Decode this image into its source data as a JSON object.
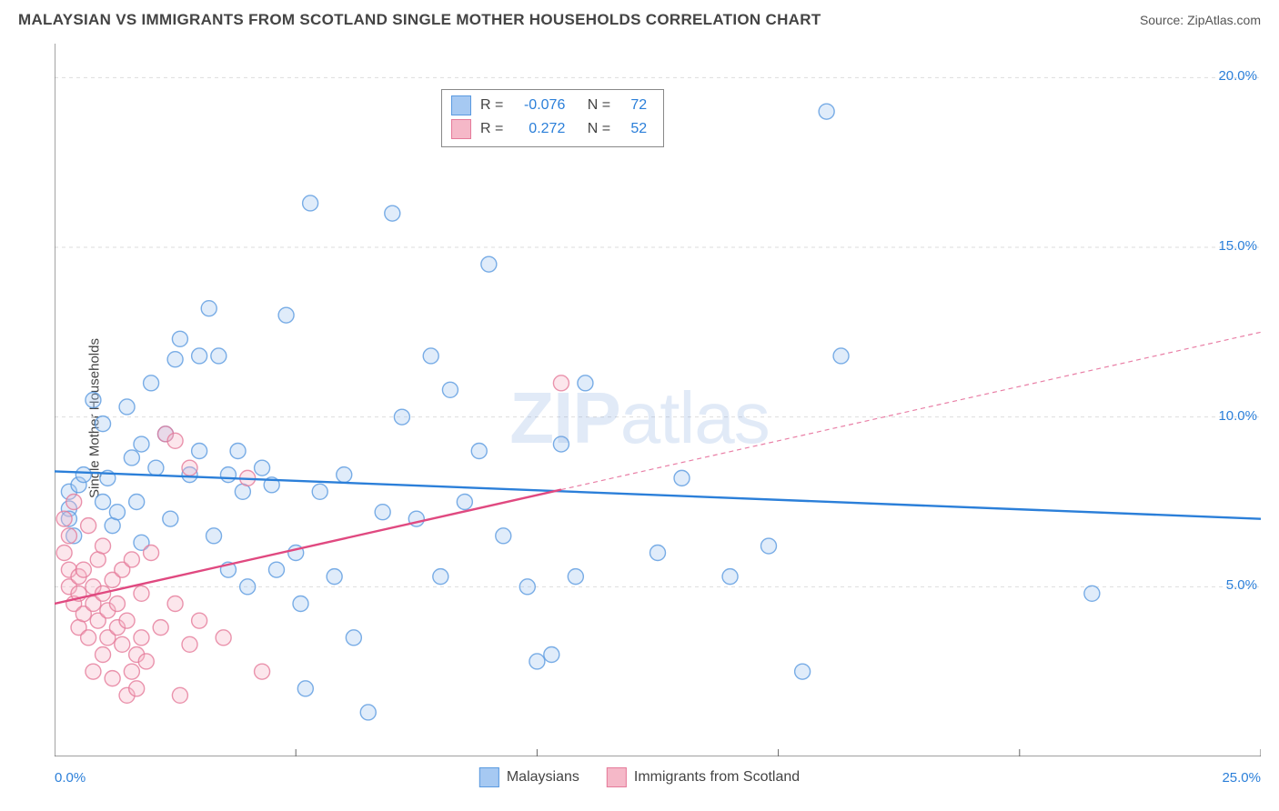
{
  "title": "MALAYSIAN VS IMMIGRANTS FROM SCOTLAND SINGLE MOTHER HOUSEHOLDS CORRELATION CHART",
  "source_label": "Source: ",
  "source_value": "ZipAtlas.com",
  "y_axis_label": "Single Mother Households",
  "watermark_bold": "ZIP",
  "watermark_rest": "atlas",
  "chart": {
    "type": "scatter",
    "background_color": "#ffffff",
    "grid_color": "#dddddd",
    "axis_color": "#666666",
    "xlim": [
      0,
      25
    ],
    "ylim": [
      0,
      21
    ],
    "x_ticks": [
      0,
      5,
      10,
      15,
      20,
      25
    ],
    "x_tick_labels_shown": {
      "0": "0.0%",
      "25": "25.0%"
    },
    "y_ticks": [
      5,
      10,
      15,
      20
    ],
    "y_tick_labels": {
      "5": "5.0%",
      "10": "10.0%",
      "15": "15.0%",
      "20": "20.0%"
    },
    "marker_radius": 8.5,
    "marker_fill_opacity": 0.35,
    "marker_stroke_opacity": 0.8,
    "line_width": 2.4,
    "dash_pattern": "5,4",
    "series": [
      {
        "key": "malaysians",
        "label": "Malaysians",
        "color_fill": "#a6c9f2",
        "color_stroke": "#5a9ae0",
        "line_color": "#2b7fd9",
        "R_label": "R = ",
        "R": "-0.076",
        "N_label": "N = ",
        "N": "72",
        "trend": {
          "x1": 0,
          "y1": 8.4,
          "x2": 25,
          "y2": 7.0,
          "observed_xmax": 25
        },
        "points": [
          [
            0.3,
            7.8
          ],
          [
            0.3,
            7.3
          ],
          [
            0.3,
            7.0
          ],
          [
            0.4,
            6.5
          ],
          [
            0.5,
            8.0
          ],
          [
            0.6,
            8.3
          ],
          [
            0.8,
            10.5
          ],
          [
            1.0,
            9.8
          ],
          [
            1.0,
            7.5
          ],
          [
            1.1,
            8.2
          ],
          [
            1.2,
            6.8
          ],
          [
            1.3,
            7.2
          ],
          [
            1.5,
            10.3
          ],
          [
            1.6,
            8.8
          ],
          [
            1.7,
            7.5
          ],
          [
            1.8,
            9.2
          ],
          [
            1.8,
            6.3
          ],
          [
            2.0,
            11.0
          ],
          [
            2.1,
            8.5
          ],
          [
            2.3,
            9.5
          ],
          [
            2.4,
            7.0
          ],
          [
            2.5,
            11.7
          ],
          [
            2.6,
            12.3
          ],
          [
            2.8,
            8.3
          ],
          [
            3.0,
            11.8
          ],
          [
            3.0,
            9.0
          ],
          [
            3.2,
            13.2
          ],
          [
            3.3,
            6.5
          ],
          [
            3.4,
            11.8
          ],
          [
            3.6,
            8.3
          ],
          [
            3.6,
            5.5
          ],
          [
            3.8,
            9.0
          ],
          [
            3.9,
            7.8
          ],
          [
            4.0,
            5.0
          ],
          [
            4.3,
            8.5
          ],
          [
            4.5,
            8.0
          ],
          [
            4.6,
            5.5
          ],
          [
            4.8,
            13.0
          ],
          [
            5.0,
            6.0
          ],
          [
            5.1,
            4.5
          ],
          [
            5.2,
            2.0
          ],
          [
            5.3,
            16.3
          ],
          [
            5.5,
            7.8
          ],
          [
            5.8,
            5.3
          ],
          [
            6.0,
            8.3
          ],
          [
            6.2,
            3.5
          ],
          [
            6.5,
            1.3
          ],
          [
            6.8,
            7.2
          ],
          [
            7.0,
            16.0
          ],
          [
            7.2,
            10.0
          ],
          [
            7.5,
            7.0
          ],
          [
            7.8,
            11.8
          ],
          [
            8.0,
            5.3
          ],
          [
            8.2,
            10.8
          ],
          [
            8.5,
            7.5
          ],
          [
            8.8,
            9.0
          ],
          [
            9.0,
            14.5
          ],
          [
            9.3,
            6.5
          ],
          [
            9.8,
            5.0
          ],
          [
            10.0,
            2.8
          ],
          [
            10.3,
            3.0
          ],
          [
            10.5,
            9.2
          ],
          [
            10.8,
            5.3
          ],
          [
            11.0,
            11.0
          ],
          [
            12.5,
            6.0
          ],
          [
            13.0,
            8.2
          ],
          [
            14.0,
            5.3
          ],
          [
            14.8,
            6.2
          ],
          [
            15.5,
            2.5
          ],
          [
            16.0,
            19.0
          ],
          [
            16.3,
            11.8
          ],
          [
            21.5,
            4.8
          ]
        ]
      },
      {
        "key": "scotland",
        "label": "Immigrants from Scotland",
        "color_fill": "#f5b8c8",
        "color_stroke": "#e57a9a",
        "line_color": "#e04980",
        "R_label": "R = ",
        "R": "0.272",
        "N_label": "N = ",
        "N": "52",
        "trend": {
          "x1": 0,
          "y1": 4.5,
          "x2": 25,
          "y2": 12.5,
          "observed_xmax": 10.5
        },
        "points": [
          [
            0.2,
            7.0
          ],
          [
            0.2,
            6.0
          ],
          [
            0.3,
            5.5
          ],
          [
            0.3,
            6.5
          ],
          [
            0.3,
            5.0
          ],
          [
            0.4,
            4.5
          ],
          [
            0.4,
            7.5
          ],
          [
            0.5,
            5.3
          ],
          [
            0.5,
            3.8
          ],
          [
            0.5,
            4.8
          ],
          [
            0.6,
            4.2
          ],
          [
            0.6,
            5.5
          ],
          [
            0.7,
            3.5
          ],
          [
            0.7,
            6.8
          ],
          [
            0.8,
            4.5
          ],
          [
            0.8,
            5.0
          ],
          [
            0.8,
            2.5
          ],
          [
            0.9,
            4.0
          ],
          [
            0.9,
            5.8
          ],
          [
            1.0,
            3.0
          ],
          [
            1.0,
            4.8
          ],
          [
            1.0,
            6.2
          ],
          [
            1.1,
            3.5
          ],
          [
            1.1,
            4.3
          ],
          [
            1.2,
            5.2
          ],
          [
            1.2,
            2.3
          ],
          [
            1.3,
            3.8
          ],
          [
            1.3,
            4.5
          ],
          [
            1.4,
            5.5
          ],
          [
            1.4,
            3.3
          ],
          [
            1.5,
            1.8
          ],
          [
            1.5,
            4.0
          ],
          [
            1.6,
            2.5
          ],
          [
            1.6,
            5.8
          ],
          [
            1.7,
            3.0
          ],
          [
            1.7,
            2.0
          ],
          [
            1.8,
            4.8
          ],
          [
            1.8,
            3.5
          ],
          [
            1.9,
            2.8
          ],
          [
            2.0,
            6.0
          ],
          [
            2.2,
            3.8
          ],
          [
            2.3,
            9.5
          ],
          [
            2.5,
            4.5
          ],
          [
            2.5,
            9.3
          ],
          [
            2.6,
            1.8
          ],
          [
            2.8,
            3.3
          ],
          [
            2.8,
            8.5
          ],
          [
            3.0,
            4.0
          ],
          [
            3.5,
            3.5
          ],
          [
            4.0,
            8.2
          ],
          [
            4.3,
            2.5
          ],
          [
            10.5,
            11.0
          ]
        ]
      }
    ]
  }
}
